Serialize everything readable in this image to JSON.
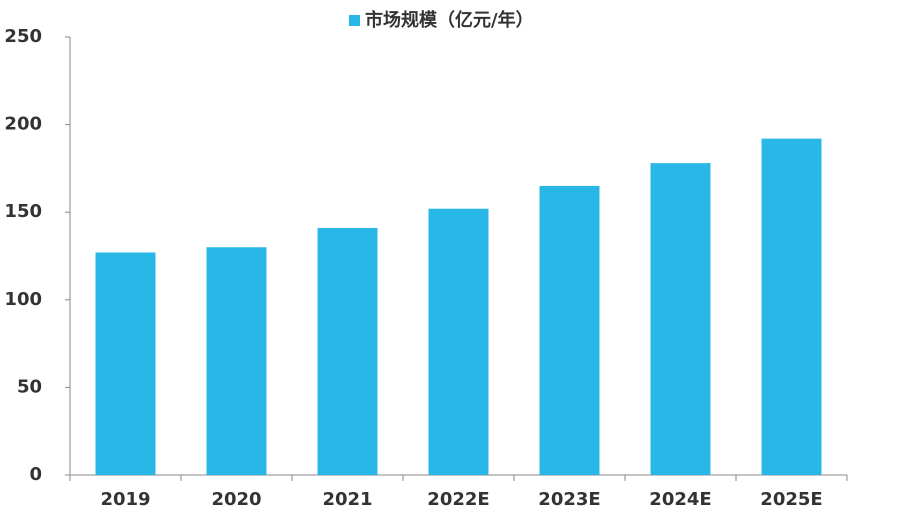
{
  "chart_data": {
    "type": "bar",
    "categories": [
      "2019",
      "2020",
      "2021",
      "2022E",
      "2023E",
      "2024E",
      "2025E"
    ],
    "series": [
      {
        "name": "市场规模（亿元/年）",
        "color": "#29b7e8",
        "values": [
          127,
          130,
          141,
          152,
          165,
          178,
          192
        ]
      }
    ],
    "ylim": [
      0,
      250
    ],
    "yticks": [
      0,
      50,
      100,
      150,
      200,
      250
    ],
    "grid": false,
    "legend": "top"
  }
}
